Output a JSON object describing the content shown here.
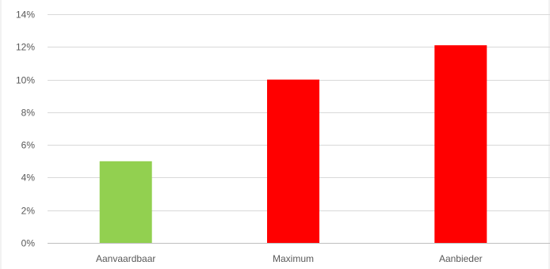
{
  "chart_data": {
    "type": "bar",
    "categories": [
      "Aanvaardbaar",
      "Maximum",
      "Aanbieder"
    ],
    "values": [
      5,
      10,
      12.1
    ],
    "bar_colors": [
      "#92d050",
      "#ff0000",
      "#ff0000"
    ],
    "ylim": [
      0,
      14
    ],
    "yticks": [
      0,
      2,
      4,
      6,
      8,
      10,
      12,
      14
    ],
    "ytick_labels": [
      "0%",
      "2%",
      "4%",
      "6%",
      "8%",
      "10%",
      "12%",
      "14%"
    ],
    "grid": true,
    "legend": "none",
    "colors": {
      "grid": "#d9d9d9",
      "axis": "#bfbfbf",
      "text": "#595959"
    }
  }
}
